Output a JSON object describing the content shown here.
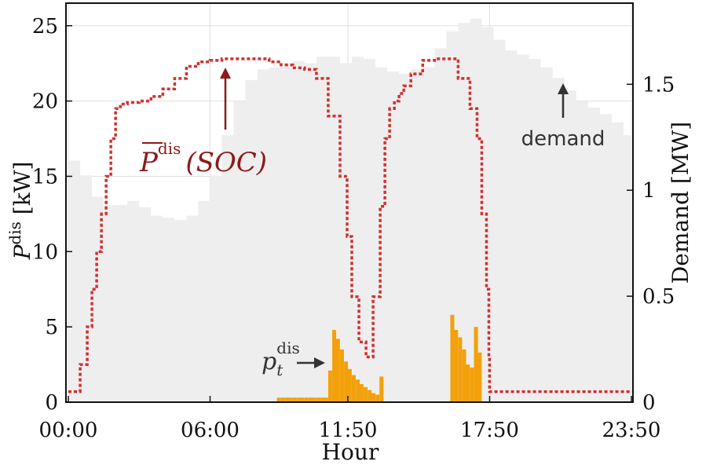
{
  "chart_data": {
    "type": "area",
    "xlabel": "Hour",
    "ylabel_left": "P",
    "ylabel_left_sup": "dis",
    "ylabel_left_unit": " [kW]",
    "ylabel_right": "Demand [MW]",
    "x_ticks": [
      "00:00",
      "06:00",
      "11:50",
      "17:50",
      "23:50"
    ],
    "x_tick_hours": [
      0,
      6,
      11.833,
      17.833,
      23.833
    ],
    "xlim": [
      -0.1,
      23.9
    ],
    "ylim_left": [
      0,
      26.5
    ],
    "ylim_right": [
      0,
      1.883
    ],
    "y_ticks_left": [
      "0",
      "5",
      "10",
      "15",
      "20",
      "25"
    ],
    "y_ticks_right": [
      "0",
      "0.5",
      "1",
      "1.5"
    ],
    "grid": true,
    "series": [
      {
        "name": "demand",
        "axis": "right",
        "style": "area",
        "color": "#eeeeee",
        "x": [
          0,
          0.5,
          1,
          1.5,
          2,
          2.5,
          3,
          3.5,
          4,
          4.5,
          5,
          5.5,
          6,
          6.5,
          7,
          7.5,
          8,
          8.5,
          9,
          9.5,
          10,
          10.5,
          11,
          11.5,
          12,
          12.5,
          13,
          13.5,
          14,
          14.5,
          15,
          15.5,
          16,
          16.5,
          17,
          17.5,
          18,
          18.5,
          19,
          19.5,
          20,
          20.5,
          21,
          21.5,
          22,
          22.5,
          23,
          23.5,
          23.83
        ],
        "values": [
          1.14,
          1.07,
          0.97,
          0.93,
          0.93,
          0.95,
          0.92,
          0.88,
          0.87,
          0.86,
          0.88,
          0.95,
          1.07,
          1.26,
          1.42,
          1.52,
          1.57,
          1.58,
          1.6,
          1.61,
          1.6,
          1.63,
          1.63,
          1.6,
          1.63,
          1.62,
          1.58,
          1.56,
          1.55,
          1.57,
          1.58,
          1.67,
          1.75,
          1.79,
          1.81,
          1.77,
          1.71,
          1.66,
          1.64,
          1.62,
          1.58,
          1.53,
          1.47,
          1.42,
          1.39,
          1.36,
          1.32,
          1.26,
          1.22
        ]
      },
      {
        "name": "P̄^dis(SOC)",
        "axis": "left",
        "style": "dotted-line",
        "color": "#d32f2f",
        "x": [
          0,
          0.4,
          0.5,
          0.8,
          1.0,
          1.2,
          1.4,
          1.6,
          1.8,
          2.0,
          2.2,
          2.5,
          3.0,
          3.5,
          4.0,
          4.5,
          5.0,
          5.5,
          6.0,
          6.5,
          7.0,
          7.5,
          8.0,
          8.5,
          9.0,
          9.5,
          10.0,
          10.5,
          11.0,
          11.5,
          11.8,
          12.0,
          12.3,
          12.6,
          12.9,
          13.2,
          13.4,
          13.6,
          13.8,
          14.0,
          14.2,
          14.5,
          15.0,
          15.5,
          16.0,
          16.5,
          17.0,
          17.3,
          17.5,
          17.7,
          17.8,
          17.83,
          20.0,
          23.83
        ],
        "values": [
          0.7,
          0.7,
          2.5,
          5.0,
          7.5,
          10.0,
          12.5,
          15.0,
          17.5,
          19.5,
          19.8,
          19.9,
          20.0,
          20.3,
          20.8,
          21.5,
          22.3,
          22.6,
          22.7,
          22.8,
          22.8,
          22.8,
          22.8,
          22.6,
          22.4,
          22.2,
          22.1,
          21.5,
          19.0,
          15.0,
          11.0,
          7.0,
          4.0,
          3.0,
          7.0,
          13.0,
          17.5,
          19.5,
          20.0,
          20.5,
          21.0,
          21.8,
          22.7,
          22.8,
          22.8,
          21.5,
          19.5,
          17.5,
          12.5,
          7.5,
          3.0,
          0.7,
          0.7,
          0.7
        ]
      },
      {
        "name": "p_t^dis",
        "axis": "left",
        "style": "bar",
        "color": "#f3a10b",
        "x": [
          8.83,
          9.0,
          9.17,
          9.33,
          9.5,
          9.67,
          9.83,
          10.0,
          10.17,
          10.33,
          10.5,
          10.67,
          10.83,
          11.0,
          11.17,
          11.33,
          11.5,
          11.67,
          11.83,
          12.0,
          12.17,
          12.33,
          12.5,
          12.67,
          12.83,
          13.0,
          13.17,
          16.17,
          16.33,
          16.5,
          16.67,
          16.83,
          17.0,
          17.17,
          17.33,
          17.5
        ],
        "values": [
          0.3,
          0.3,
          0.3,
          0.3,
          0.3,
          0.3,
          0.3,
          0.3,
          0.3,
          0.3,
          0.3,
          0.3,
          0.3,
          2.1,
          4.8,
          4.2,
          3.5,
          2.7,
          2.2,
          1.8,
          1.5,
          1.2,
          1.0,
          0.8,
          0.6,
          0.5,
          1.7,
          5.8,
          4.8,
          4.3,
          3.5,
          2.5,
          2.3,
          5.0,
          3.3,
          0.0
        ]
      }
    ],
    "annotations": {
      "demand": "demand",
      "pmax_main": "P",
      "pmax_sup": "dis",
      "pmax_arg": "(SOC)",
      "pt_main": "p",
      "pt_sub": "t",
      "pt_sup": "dis"
    }
  }
}
